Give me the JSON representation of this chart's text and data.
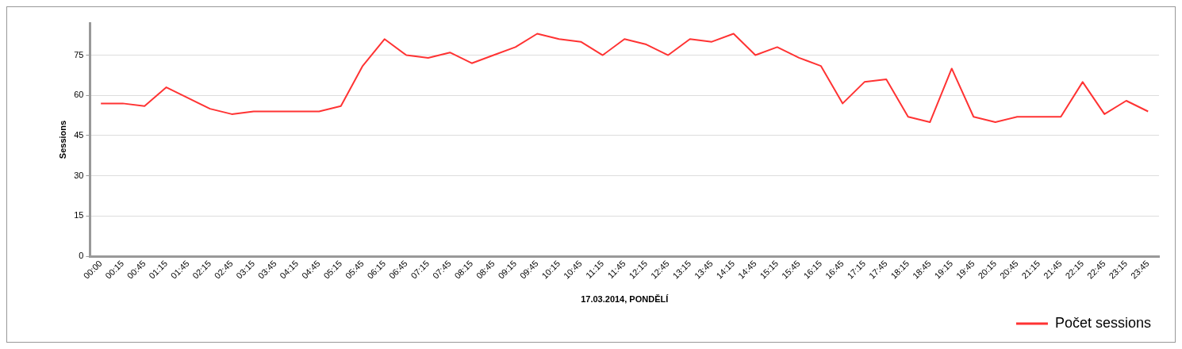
{
  "chart_data": {
    "type": "line",
    "xlabel": "17.03.2014, PONDĚLÍ",
    "ylabel": "Sessions",
    "categories": [
      "00:00",
      "00:15",
      "00:45",
      "01:15",
      "01:45",
      "02:15",
      "02:45",
      "03:15",
      "03:45",
      "04:15",
      "04:45",
      "05:15",
      "05:45",
      "06:15",
      "06:45",
      "07:15",
      "07:45",
      "08:15",
      "08:45",
      "09:15",
      "09:45",
      "10:15",
      "10:45",
      "11:15",
      "11:45",
      "12:15",
      "12:45",
      "13:15",
      "13:45",
      "14:15",
      "14:45",
      "15:15",
      "15:45",
      "16:15",
      "16:45",
      "17:15",
      "17:45",
      "18:15",
      "18:45",
      "19:15",
      "19:45",
      "20:15",
      "20:45",
      "21:15",
      "21:45",
      "22:15",
      "22:45",
      "23:15",
      "23:45"
    ],
    "series": [
      {
        "name": "Počet sessions",
        "color": "#ff3333",
        "values": [
          57,
          57,
          56,
          63,
          59,
          55,
          53,
          54,
          54,
          54,
          54,
          56,
          71,
          81,
          75,
          74,
          76,
          72,
          75,
          78,
          83,
          81,
          80,
          75,
          81,
          79,
          75,
          81,
          80,
          83,
          75,
          78,
          74,
          71,
          57,
          65,
          66,
          52,
          50,
          70,
          52,
          50,
          52,
          52,
          52,
          65,
          53,
          58,
          54
        ]
      }
    ],
    "ylim": [
      0,
      87
    ],
    "yticks": [
      0,
      15,
      30,
      45,
      60,
      75
    ],
    "grid": "y",
    "legend": "bottom right",
    "marker": "none",
    "line_style": "solid"
  }
}
